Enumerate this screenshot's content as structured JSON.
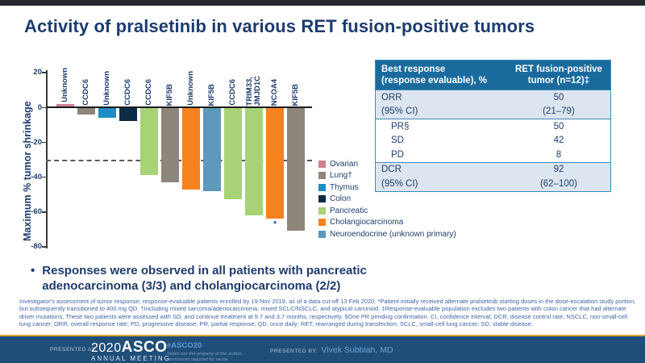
{
  "slide": {
    "title": "Activity of pralsetinib in various RET fusion-positive tumors"
  },
  "chart_data": {
    "type": "bar",
    "subtype": "waterfall",
    "title": "",
    "xlabel": "",
    "ylabel": "Maximum % tumor shrinkage",
    "ylim": [
      -80,
      20
    ],
    "yticks": [
      20,
      0,
      -20,
      -40,
      -60,
      -80
    ],
    "reference_line_y": -30,
    "grid": false,
    "legend_position": "right-middle",
    "bars": [
      {
        "label": "Unknown",
        "value": 2,
        "tumor": "ovarian"
      },
      {
        "label": "CCDC6",
        "value": -4,
        "tumor": "lung"
      },
      {
        "label": "Unknown",
        "value": -6,
        "tumor": "thymus"
      },
      {
        "label": "CCDC6",
        "value": -8,
        "tumor": "colon"
      },
      {
        "label": "CCDC6",
        "value": -39,
        "tumor": "pancreatic"
      },
      {
        "label": "KIF5B",
        "value": -43,
        "tumor": "lung"
      },
      {
        "label": "Unknown",
        "value": -47,
        "tumor": "cholangiocarcinoma"
      },
      {
        "label": "KIF5B",
        "value": -48,
        "tumor": "neuroendocrine"
      },
      {
        "label": "CCDC6",
        "value": -53,
        "tumor": "pancreatic"
      },
      {
        "label": "TRIM33,\nJMJD1C",
        "value": -62,
        "tumor": "pancreatic"
      },
      {
        "label": "NCOA4",
        "value": -64,
        "tumor": "cholangiocarcinoma",
        "note": "*"
      },
      {
        "label": "KIF5B",
        "value": -71,
        "tumor": "lung"
      }
    ],
    "legend": [
      {
        "key": "ovarian",
        "label": "Ovarian",
        "color": "#cd8191"
      },
      {
        "key": "lung",
        "label": "Lung†",
        "color": "#8e857b"
      },
      {
        "key": "thymus",
        "label": "Thymus",
        "color": "#1d8dc6"
      },
      {
        "key": "colon",
        "label": "Colon",
        "color": "#0c2b45"
      },
      {
        "key": "pancreatic",
        "label": "Pancreatic",
        "color": "#a8d276"
      },
      {
        "key": "cholangiocarcinoma",
        "label": "Cholangiocarcinoma",
        "color": "#f5821f"
      },
      {
        "key": "neuroendocrine",
        "label": "Neuroendocrine (unknown primary)",
        "color": "#5e98ba"
      }
    ]
  },
  "table": {
    "header": [
      "Best response\n(response evaluable), %",
      "RET fusion-positive\ntumor (n=12)‡"
    ],
    "rows": [
      {
        "label": "ORR",
        "value": "50",
        "shaded": true,
        "indent": false,
        "group_start": true
      },
      {
        "label": "(95% CI)",
        "value": "(21–79)",
        "shaded": true,
        "indent": false,
        "group_start": false
      },
      {
        "label": "PR§",
        "value": "50",
        "shaded": false,
        "indent": true,
        "group_start": true
      },
      {
        "label": "SD",
        "value": "42",
        "shaded": false,
        "indent": true,
        "group_start": false
      },
      {
        "label": "PD",
        "value": "8",
        "shaded": false,
        "indent": true,
        "group_start": false
      },
      {
        "label": "DCR",
        "value": "92",
        "shaded": true,
        "indent": false,
        "group_start": true
      },
      {
        "label": "(95% CI)",
        "value": "(62–100)",
        "shaded": true,
        "indent": false,
        "group_start": false
      }
    ]
  },
  "bullet": {
    "text": "Responses were observed in all patients with pancreatic adenocarcinoma (3/3) and cholangiocarcinoma (2/2)"
  },
  "footnote": {
    "text": "Investigator's assessment of tumor response; response-evaluable patients enrolled by 19 Nov 2019, as of a data cut-off 13 Feb 2020. *Patient initially received alternate pralsetinib starting doses in the dose-escalation study portion, but subsequently transitioned to 400 mg QD. †Including mixed sarcoma/adenocarcinoma, mixed SCLC/NSCLC, and atypical carcinoid. ‡Response-evaluable population excludes two patients with colon cancer that had alternate driver mutations. These two patients were assessed with SD, and continue treatment at 9.7 and 3.7 months, respectively. §One PR pending confirmation. CI, confidence interval; DCR, disease control rate; NSCLC, non-small-cell lung cancer; ORR, overall response rate; PD, progressive disease; PR, partial response; QD, once daily; RET, rearranged during transfection; SCLC, small-cell lung cancer; SD, stable disease."
  },
  "footer": {
    "presented_at_label": "PRESENTED AT:",
    "logo_year": "2020",
    "logo_name": "ASCO",
    "logo_sub": "ANNUAL MEETING",
    "hashtag": "#ASCO20",
    "disclaimer": "Slides are the property of the author,\npermission required for reuse.",
    "presented_by_label": "PRESENTED BY:",
    "presenter": "Vivek Subbiah, MD"
  },
  "colors": {
    "accent_navy": "#1d3c6e",
    "table_header_bg": "#1a6b9d",
    "row_shaded_bg": "#dde6f0",
    "footer_bg": "#1f4e79",
    "footer_gold": "#d6a539",
    "footnote_blue": "#4063a8",
    "hashtag_blue": "#5d9bd3",
    "presenter_blue": "#6ea4d8"
  }
}
